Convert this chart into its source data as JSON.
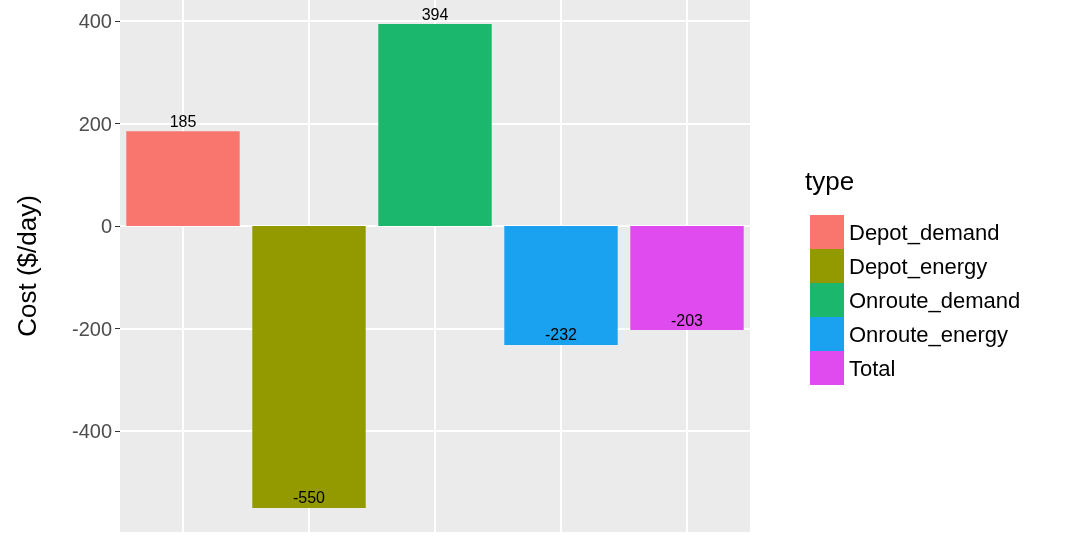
{
  "chart_data": {
    "type": "bar",
    "ylabel": "Cost ($/day)",
    "legend_title": "type",
    "categories": [
      null,
      null,
      null,
      null,
      null
    ],
    "series": [
      {
        "name": "Depot_demand",
        "color": "#f8766d",
        "values": [
          185,
          null,
          null,
          null,
          null
        ]
      },
      {
        "name": "Depot_energy",
        "color": "#939a00",
        "values": [
          null,
          -550,
          null,
          null,
          null
        ]
      },
      {
        "name": "Onroute_demand",
        "color": "#1bb76c",
        "values": [
          null,
          null,
          394,
          null,
          null
        ]
      },
      {
        "name": "Onroute_energy",
        "color": "#1aa1f0",
        "values": [
          null,
          null,
          null,
          -232,
          null
        ]
      },
      {
        "name": "Total",
        "color": "#e04bf0",
        "values": [
          null,
          null,
          null,
          null,
          -203
        ]
      }
    ],
    "stacked": true,
    "data_labels": true,
    "ylim": [
      -597,
      441
    ],
    "yticks": [
      -400,
      -200,
      0,
      200,
      400
    ],
    "grid": true,
    "legend": "right"
  }
}
